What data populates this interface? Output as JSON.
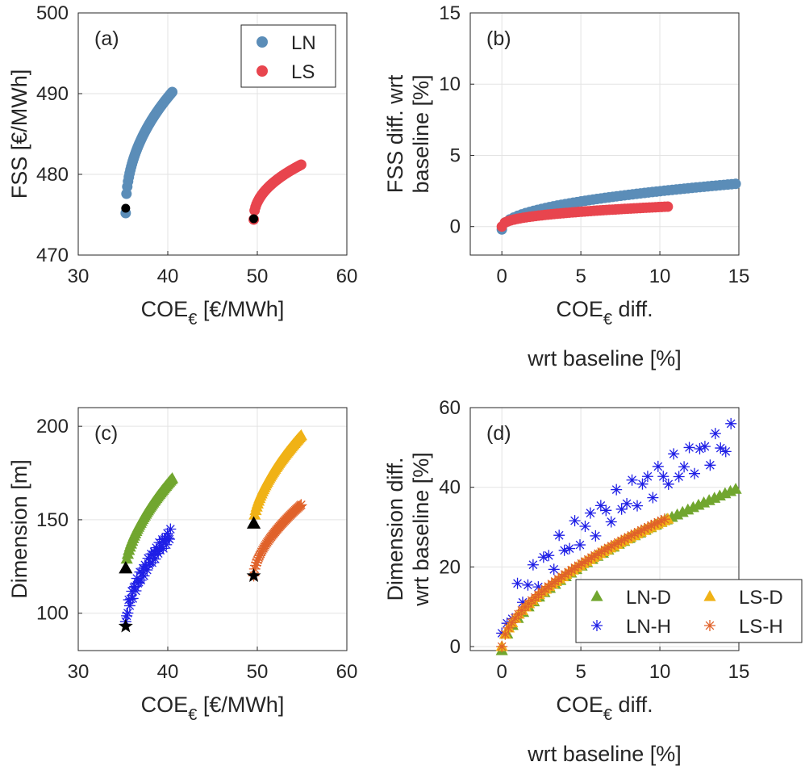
{
  "figure": {
    "colors": {
      "LN": "#5b8db8",
      "LS": "#e8454e",
      "baseline_marker": "#000000",
      "LN-D": "#71a62f",
      "LN-H": "#1f1fe6",
      "LS-D": "#f0b216",
      "LS-H": "#e0622a"
    }
  },
  "chart_data": [
    {
      "panel": "(a)",
      "type": "scatter",
      "xlabel": "COE",
      "xlabel_sub": "€",
      "xlabel_unit": " [€/MWh]",
      "ylabel": "FSS [€/MWh]",
      "xlim": [
        30,
        60
      ],
      "ylim": [
        470,
        500
      ],
      "xticks": [
        30,
        40,
        50,
        60
      ],
      "yticks": [
        470,
        480,
        490,
        500
      ],
      "grid": true,
      "legend_position": "top-right",
      "series": [
        {
          "name": "LN",
          "color": "#5b8db8",
          "marker": "circle",
          "curve": {
            "x0": 35.3,
            "x1": 40.5,
            "y0": 475.2,
            "y1": 490.2,
            "power": 0.45,
            "n": 60
          }
        },
        {
          "name": "LS",
          "color": "#e8454e",
          "marker": "circle",
          "curve": {
            "x0": 49.6,
            "x1": 54.9,
            "y0": 474.4,
            "y1": 481.2,
            "power": 0.45,
            "n": 55
          }
        }
      ],
      "baseline_points": [
        {
          "x": 35.3,
          "y": 475.8,
          "marker": "circle"
        },
        {
          "x": 49.6,
          "y": 474.5,
          "marker": "circle"
        }
      ]
    },
    {
      "panel": "(b)",
      "type": "scatter",
      "xlabel": "COE",
      "xlabel_sub": "€",
      "xlabel_unit": " diff.",
      "xlabel_line2": "wrt baseline [%]",
      "ylabel": "FSS diff. wrt",
      "ylabel_line2": "baseline [%]",
      "xlim": [
        -2,
        15
      ],
      "ylim": [
        -2,
        15
      ],
      "xticks": [
        0,
        5,
        10,
        15
      ],
      "yticks": [
        0,
        5,
        10,
        15
      ],
      "grid": true,
      "series": [
        {
          "name": "LN",
          "color": "#5b8db8",
          "marker": "circle",
          "curve": {
            "x0": 0,
            "x1": 14.8,
            "y0": -0.2,
            "y1": 3.0,
            "power": 0.45,
            "n": 60
          }
        },
        {
          "name": "LS",
          "color": "#e8454e",
          "marker": "circle",
          "curve": {
            "x0": 0,
            "x1": 10.5,
            "y0": 0.0,
            "y1": 1.4,
            "power": 0.4,
            "n": 55
          }
        }
      ]
    },
    {
      "panel": "(c)",
      "type": "scatter",
      "xlabel": "COE",
      "xlabel_sub": "€",
      "xlabel_unit": " [€/MWh]",
      "ylabel": "Dimension [m]",
      "xlim": [
        30,
        60
      ],
      "ylim": [
        80,
        210
      ],
      "xticks": [
        30,
        40,
        50,
        60
      ],
      "yticks": [
        100,
        150,
        200
      ],
      "grid": true,
      "series": [
        {
          "name": "LN-D",
          "color": "#71a62f",
          "marker": "triangle",
          "curve": {
            "x0": 35.3,
            "x1": 40.5,
            "y0": 124,
            "y1": 172,
            "power": 0.6,
            "n": 45
          }
        },
        {
          "name": "LN-H",
          "color": "#1f1fe6",
          "marker": "asterisk",
          "curve": {
            "x0": 35.3,
            "x1": 40.3,
            "y0": 93,
            "y1": 142,
            "power": 0.55,
            "n": 45,
            "jitter": 3
          }
        },
        {
          "name": "LS-D",
          "color": "#f0b216",
          "marker": "triangle",
          "curve": {
            "x0": 49.6,
            "x1": 54.9,
            "y0": 148,
            "y1": 195,
            "power": 0.6,
            "n": 50
          }
        },
        {
          "name": "LS-H",
          "color": "#e0622a",
          "marker": "asterisk",
          "curve": {
            "x0": 49.6,
            "x1": 54.9,
            "y0": 120,
            "y1": 158,
            "power": 0.6,
            "n": 50
          }
        }
      ],
      "baseline_points": [
        {
          "x": 35.3,
          "y": 124,
          "marker": "triangle"
        },
        {
          "x": 49.6,
          "y": 148,
          "marker": "triangle"
        },
        {
          "x": 35.3,
          "y": 93,
          "marker": "star"
        },
        {
          "x": 49.6,
          "y": 120,
          "marker": "star"
        }
      ]
    },
    {
      "panel": "(d)",
      "type": "scatter",
      "xlabel": "COE",
      "xlabel_sub": "€",
      "xlabel_unit": " diff.",
      "xlabel_line2": "wrt baseline [%]",
      "ylabel": "Dimension diff.",
      "ylabel_line2": "wrt baseline [%]",
      "xlim": [
        -2,
        15
      ],
      "ylim": [
        -1,
        60
      ],
      "xticks": [
        0,
        5,
        10,
        15
      ],
      "yticks": [
        0,
        20,
        40,
        60
      ],
      "grid": true,
      "legend_position": "bottom-right",
      "series": [
        {
          "name": "LN-D",
          "color": "#71a62f",
          "marker": "triangle",
          "curve": {
            "x0": 0,
            "x1": 14.8,
            "y0": -1,
            "y1": 39.5,
            "power": 0.6,
            "n": 45
          }
        },
        {
          "name": "LN-H",
          "color": "#1f1fe6",
          "marker": "asterisk",
          "curve": {
            "x0": 0,
            "x1": 14.5,
            "y0": 0,
            "y1": 52,
            "power": 0.55,
            "n": 45,
            "jitter": 4
          }
        },
        {
          "name": "LS-D",
          "color": "#f0b216",
          "marker": "triangle",
          "curve": {
            "x0": 0,
            "x1": 10.5,
            "y0": 0,
            "y1": 32,
            "power": 0.6,
            "n": 50
          }
        },
        {
          "name": "LS-H",
          "color": "#e0622a",
          "marker": "asterisk",
          "curve": {
            "x0": 0,
            "x1": 10.3,
            "y0": 0,
            "y1": 32,
            "power": 0.6,
            "n": 50
          }
        }
      ]
    }
  ]
}
